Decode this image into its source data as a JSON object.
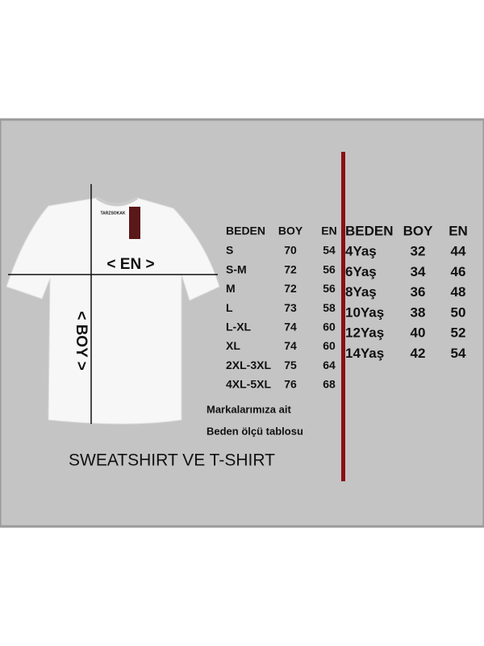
{
  "shirt": {
    "brand": "TARZSOKAK",
    "width_label": "< EN >",
    "length_label": "< BOY >"
  },
  "adult_table": {
    "header": [
      "BEDEN",
      "BOY",
      "EN"
    ],
    "rows": [
      [
        "S",
        70,
        54
      ],
      [
        "S-M",
        72,
        56
      ],
      [
        "M",
        72,
        56
      ],
      [
        "L",
        73,
        58
      ],
      [
        "L-XL",
        74,
        60
      ],
      [
        "XL",
        74,
        60
      ],
      [
        "2XL-3XL",
        75,
        64
      ],
      [
        "4XL-5XL",
        76,
        68
      ]
    ]
  },
  "kids_table": {
    "header": [
      "BEDEN",
      "BOY",
      "EN"
    ],
    "rows": [
      [
        "4Yaş",
        32,
        44
      ],
      [
        "6Yaş",
        34,
        46
      ],
      [
        "8Yaş",
        36,
        48
      ],
      [
        "10Yaş",
        38,
        50
      ],
      [
        "12Yaş",
        40,
        52
      ],
      [
        "14Yaş",
        42,
        54
      ]
    ]
  },
  "note": [
    "Markalarımıza ait",
    "Beden ölçü tablosu"
  ],
  "title": "SWEATSHIRT VE T-SHIRT"
}
